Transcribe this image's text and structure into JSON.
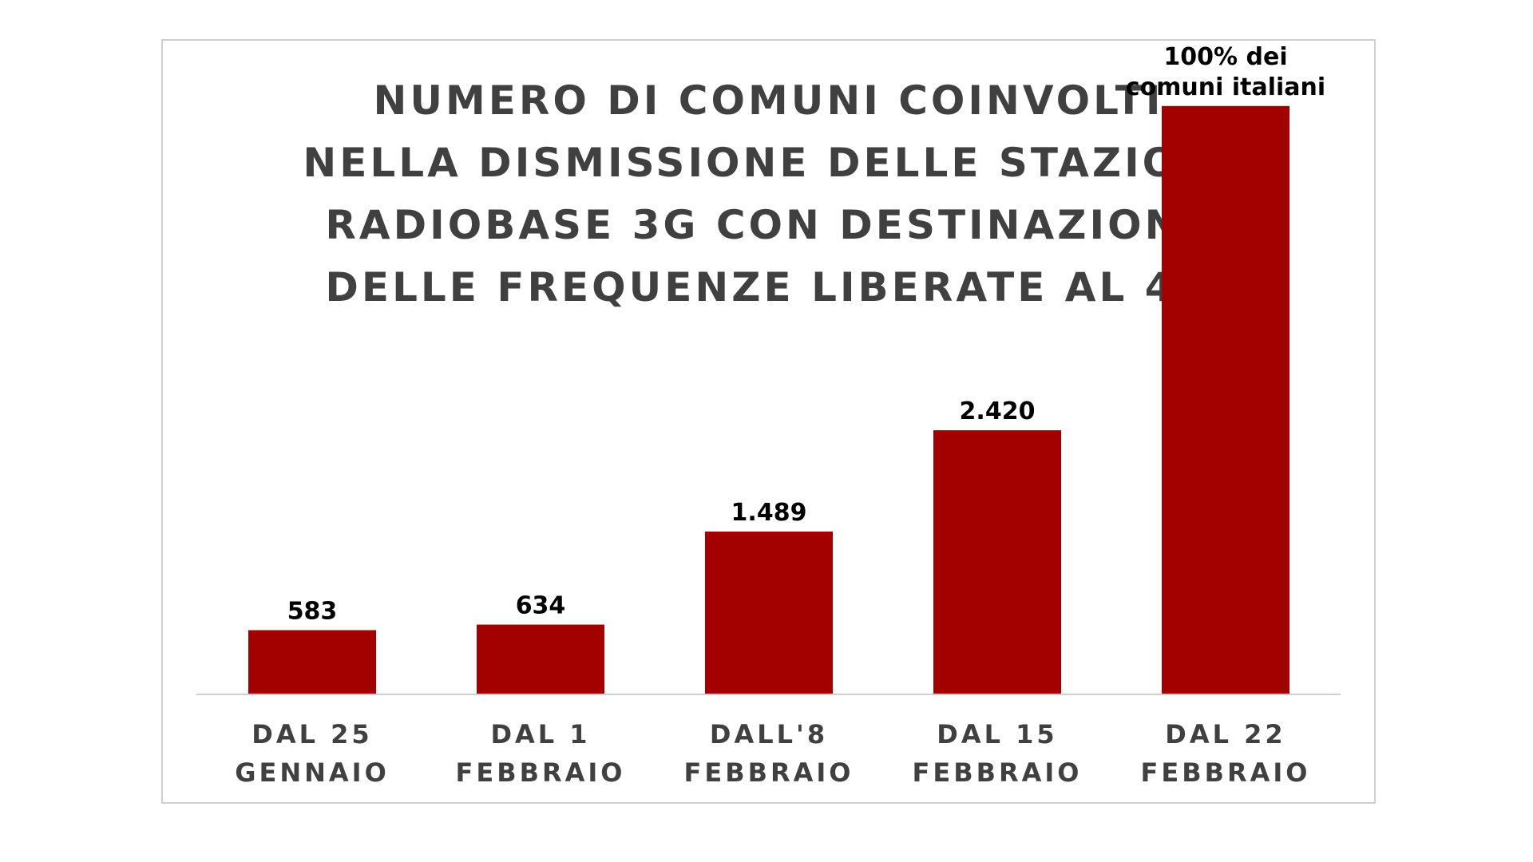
{
  "chart_data": {
    "type": "bar",
    "title_lines": [
      "NUMERO DI COMUNI COINVOLTI",
      "NELLA DISMISSIONE DELLE STAZIONI",
      "RADIOBASE 3G CON DESTINAZIONE",
      "DELLE FREQUENZE LIBERATE AL 4G"
    ],
    "categories": [
      [
        "DAL 25",
        "GENNAIO"
      ],
      [
        "DAL 1",
        "FEBBRAIO"
      ],
      [
        "DALL'8",
        "FEBBRAIO"
      ],
      [
        "DAL 15",
        "FEBBRAIO"
      ],
      [
        "DAL 22",
        "FEBBRAIO"
      ]
    ],
    "values": [
      583,
      634,
      1489,
      2420,
      5400
    ],
    "data_labels": [
      [
        "583"
      ],
      [
        "634"
      ],
      [
        "1.489"
      ],
      [
        "2.420"
      ],
      [
        "100% dei",
        "comuni italiani"
      ]
    ],
    "ylim": [
      0,
      6000
    ],
    "bar_color": "#a30000",
    "axis_color": "#d0d0d0",
    "title_color": "#404040",
    "grid": false,
    "legend": "none"
  }
}
